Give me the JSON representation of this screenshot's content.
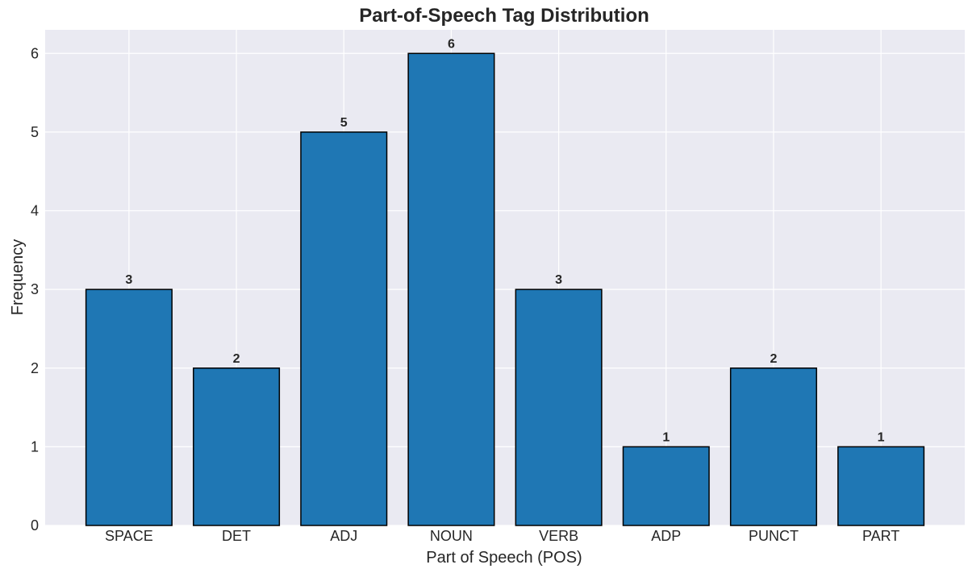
{
  "chart_data": {
    "type": "bar",
    "title": "Part-of-Speech Tag Distribution",
    "xlabel": "Part of Speech (POS)",
    "ylabel": "Frequency",
    "categories": [
      "SPACE",
      "DET",
      "ADJ",
      "NOUN",
      "VERB",
      "ADP",
      "PUNCT",
      "PART"
    ],
    "values": [
      3,
      2,
      5,
      6,
      3,
      1,
      2,
      1
    ],
    "data_labels": [
      "3",
      "2",
      "5",
      "6",
      "3",
      "1",
      "2",
      "1"
    ],
    "yticks": [
      0,
      1,
      2,
      3,
      4,
      5,
      6
    ],
    "ylim": [
      0,
      6.3
    ],
    "grid": true,
    "colors": {
      "bar": "#1f77b4",
      "bar_edge": "#000000",
      "background": "#eaeaf2",
      "grid": "#ffffff",
      "text": "#262626"
    }
  }
}
